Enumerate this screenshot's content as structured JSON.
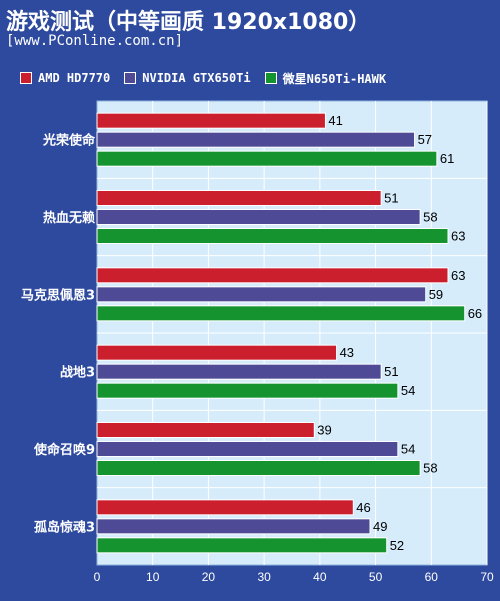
{
  "title": "游戏测试（中等画质 1920x1080）",
  "subtitle": "[www.PConline.com.cn]",
  "colors": {
    "background": "#2e4a9e",
    "plot_area": "#d6ecfb",
    "grid": "#ffffff",
    "axis_text": "#ffffff"
  },
  "chart_data": {
    "type": "bar",
    "orientation": "horizontal",
    "categories": [
      "光荣使命",
      "热血无赖",
      "马克思佩恩3",
      "战地3",
      "使命召唤9",
      "孤岛惊魂3"
    ],
    "series": [
      {
        "name": "AMD HD7770",
        "color": "#cc1f2d",
        "values": [
          41,
          51,
          63,
          43,
          39,
          46
        ]
      },
      {
        "name": "NVIDIA GTX650Ti",
        "color": "#4f4a95",
        "values": [
          57,
          58,
          59,
          51,
          54,
          49
        ]
      },
      {
        "name": "微星N650Ti-HAWK",
        "color": "#14932e",
        "values": [
          61,
          63,
          66,
          54,
          58,
          52
        ]
      }
    ],
    "xlim": [
      0,
      70
    ],
    "xticks": [
      0,
      10,
      20,
      30,
      40,
      50,
      60,
      70
    ],
    "grid": true,
    "legend_position": "top"
  }
}
